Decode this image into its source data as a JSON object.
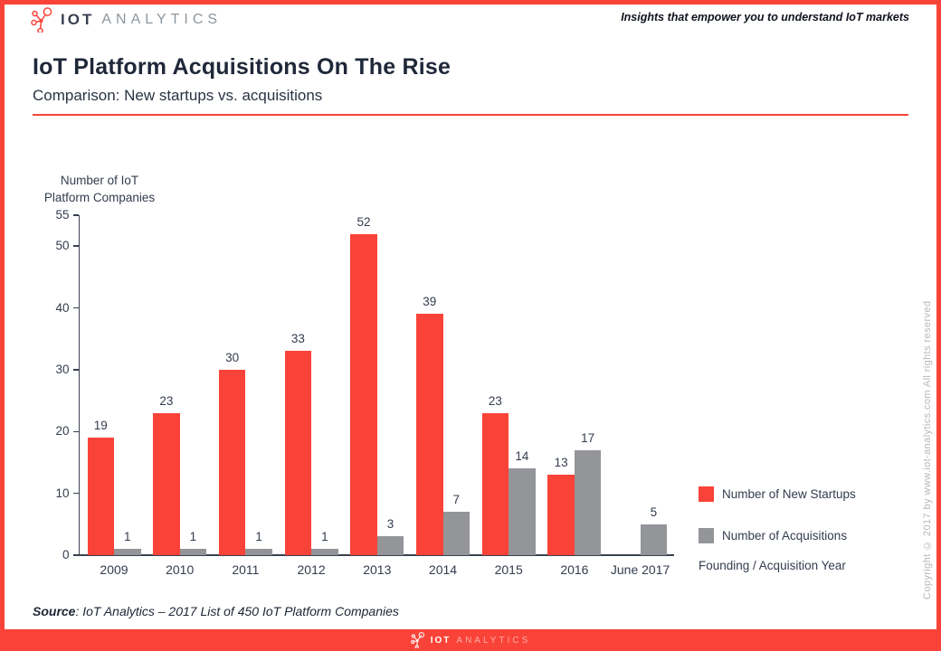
{
  "header": {
    "brand_primary": "IOT",
    "brand_secondary": "ANALYTICS",
    "tagline": "Insights that empower you to understand IoT markets"
  },
  "title": "IoT Platform Acquisitions On The Rise",
  "subtitle": "Comparison: New startups vs. acquisitions",
  "chart_data": {
    "type": "bar",
    "title": "IoT Platform Acquisitions On The Rise",
    "ylabel_line1": "Number of IoT",
    "ylabel_line2": "Platform Companies",
    "xlabel": "Founding / Acquisition Year",
    "categories": [
      "2009",
      "2010",
      "2011",
      "2012",
      "2013",
      "2014",
      "2015",
      "2016",
      "June 2017"
    ],
    "series": [
      {
        "name": "Number of New Startups",
        "color": "#fa4338",
        "values": [
          19,
          23,
          30,
          33,
          52,
          39,
          23,
          13,
          null
        ]
      },
      {
        "name": "Number of Acquisitions",
        "color": "#939598",
        "values": [
          1,
          1,
          1,
          1,
          3,
          7,
          14,
          17,
          5
        ]
      }
    ],
    "ylim": [
      0,
      55
    ],
    "yticks": [
      0,
      10,
      20,
      30,
      40,
      50,
      55
    ],
    "grid": false,
    "legend_position": "right"
  },
  "source": {
    "label": "Source",
    "text": ": IoT Analytics – 2017 List of 450 IoT Platform Companies"
  },
  "copyright": "Copyright © 2017 by www.iot-analytics.com All rights reserved",
  "colors": {
    "accent_red": "#fa4338",
    "bar_gray": "#939598",
    "axis_dark": "#3a4150",
    "copyright_gray": "#b4b8bc"
  }
}
